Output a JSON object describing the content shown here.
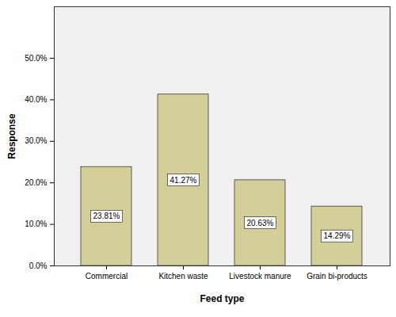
{
  "chart_data": {
    "type": "bar",
    "x_label": "Feed type",
    "y_label": "Response",
    "categories": [
      "Commercial",
      "Kitchen waste",
      "Livestock manure",
      "Grain bi-products"
    ],
    "values": [
      23.81,
      41.27,
      20.63,
      14.29
    ],
    "value_labels": [
      "23.81%",
      "41.27%",
      "20.63%",
      "14.29%"
    ],
    "data_labels": true,
    "color": "#d4cf98",
    "ylim": [
      0,
      62.4
    ],
    "yticks": [
      {
        "value": 0,
        "label": "0.0%"
      },
      {
        "value": 10,
        "label": "10.0%"
      },
      {
        "value": 20,
        "label": "20.0%"
      },
      {
        "value": 30,
        "label": "30.0%"
      },
      {
        "value": 40,
        "label": "40.0%"
      },
      {
        "value": 50,
        "label": "50.0%"
      }
    ],
    "grid": false
  }
}
